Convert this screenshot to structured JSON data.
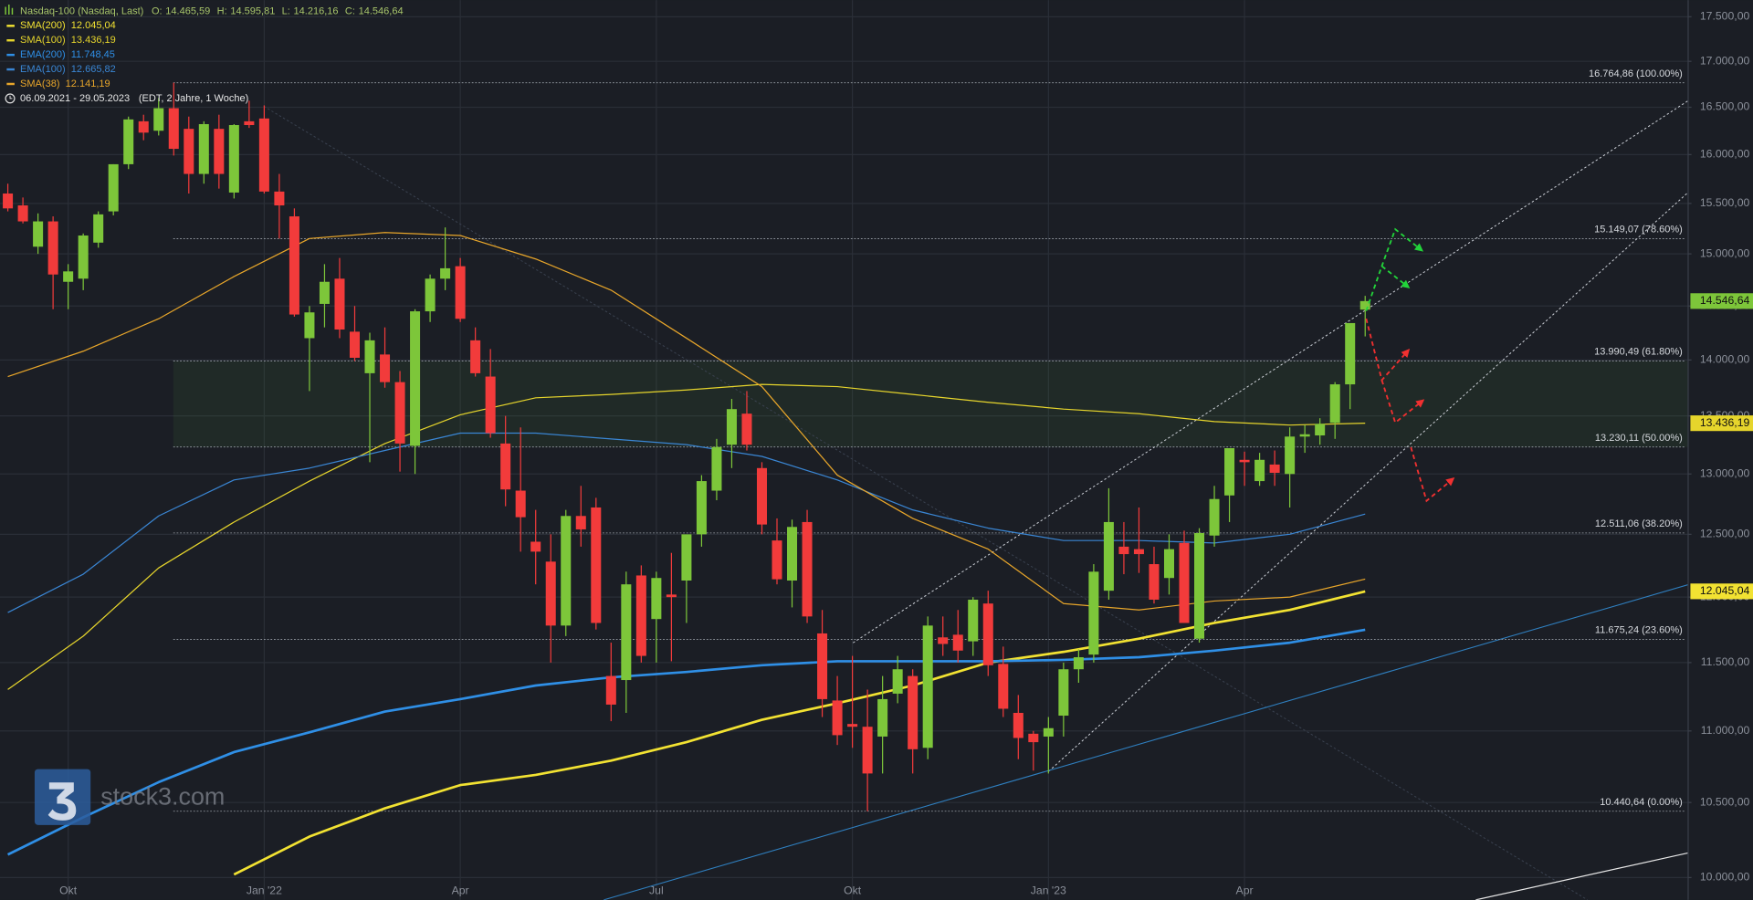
{
  "header": {
    "instrument": "Nasdaq-100 (Nasdaq, Last)",
    "ohlc": [
      {
        "key": "O:",
        "label": "14.465,59"
      },
      {
        "key": "H:",
        "label": "14.595,81"
      },
      {
        "key": "L:",
        "label": "14.216,16"
      },
      {
        "key": "C:",
        "label": "14.546,64"
      }
    ],
    "range": "06.09.2021 - 29.05.2023",
    "range_note": "(EDT, 2 Jahre, 1 Woche)"
  },
  "watermark": "stock3.com",
  "chart_data": {
    "type": "candlestick",
    "log_scale": true,
    "grid": true,
    "ylim": [
      9856,
      17690
    ],
    "yticks": [
      {
        "value": 10000,
        "label": "10.000,00"
      },
      {
        "value": 10500,
        "label": "10.500,00"
      },
      {
        "value": 11000,
        "label": "11.000,00"
      },
      {
        "value": 11500,
        "label": "11.500,00"
      },
      {
        "value": 12000,
        "label": "12.000,00"
      },
      {
        "value": 12500,
        "label": "12.500,00"
      },
      {
        "value": 13000,
        "label": "13.000,00"
      },
      {
        "value": 13500,
        "label": "13.500,00"
      },
      {
        "value": 14000,
        "label": "14.000,00"
      },
      {
        "value": 14500,
        "label": "14.500,00"
      },
      {
        "value": 15000,
        "label": "15.000,00"
      },
      {
        "value": 15500,
        "label": "15.500,00"
      },
      {
        "value": 16000,
        "label": "16.000,00"
      },
      {
        "value": 16500,
        "label": "16.500,00"
      },
      {
        "value": 17000,
        "label": "17.000,00"
      },
      {
        "value": 17500,
        "label": "17.500,00"
      }
    ],
    "xticks": [
      {
        "value": 4,
        "label": "Okt"
      },
      {
        "value": 17,
        "label": "Jan '22"
      },
      {
        "value": 30,
        "label": "Apr"
      },
      {
        "value": 43,
        "label": "Jul"
      },
      {
        "value": 56,
        "label": "Okt"
      },
      {
        "value": 69,
        "label": "Jan '23"
      },
      {
        "value": 82,
        "label": "Apr"
      }
    ],
    "up_color": "#7dc63a",
    "down_color": "#f23b3b",
    "open": [
      15600,
      15480,
      15070,
      15320,
      14730,
      14760,
      15110,
      15420,
      15900,
      16350,
      16250,
      16490,
      16270,
      15800,
      16270,
      15610,
      16350,
      16380,
      15620,
      15370,
      14200,
      14520,
      14760,
      14260,
      13880,
      14050,
      13800,
      13240,
      14450,
      14760,
      14880,
      14180,
      13850,
      13260,
      12860,
      12440,
      12280,
      11780,
      12650,
      12720,
      11400,
      11370,
      12170,
      11830,
      12020,
      12130,
      12500,
      12860,
      13250,
      13520,
      13050,
      12450,
      12130,
      12600,
      11720,
      11220,
      11050,
      11030,
      10960,
      11270,
      11400,
      10880,
      11690,
      11710,
      11660,
      11950,
      11490,
      11130,
      10980,
      10960,
      11110,
      11450,
      11560,
      12050,
      12400,
      12380,
      12260,
      12150,
      12430,
      11680,
      12490,
      12820,
      13120,
      12940,
      13080,
      13000,
      13320,
      13330,
      13440,
      13780,
      14465.59
    ],
    "high": [
      15700,
      15560,
      15400,
      15370,
      14900,
      15200,
      15420,
      15900,
      16400,
      16420,
      16600,
      16764.86,
      16400,
      16350,
      16420,
      16320,
      16570,
      16520,
      15800,
      15450,
      14500,
      14900,
      14960,
      14500,
      14250,
      14300,
      13900,
      14470,
      14800,
      15260,
      14960,
      14300,
      14100,
      13500,
      13400,
      12700,
      12500,
      12700,
      12900,
      12800,
      11650,
      12200,
      12250,
      12200,
      12350,
      12450,
      12990,
      13300,
      13650,
      13720,
      13100,
      12630,
      12620,
      12700,
      11900,
      11400,
      11550,
      11300,
      11400,
      11550,
      11450,
      11850,
      11850,
      11900,
      12000,
      12050,
      11620,
      11260,
      11000,
      11100,
      11500,
      11600,
      12260,
      12880,
      12600,
      12720,
      12400,
      12500,
      12530,
      12550,
      12900,
      13220,
      13190,
      13180,
      13200,
      13400,
      13420,
      13480,
      13800,
      14300,
      14595.81
    ],
    "low": [
      15420,
      15300,
      15000,
      14470,
      14470,
      14650,
      15060,
      15380,
      15850,
      16150,
      16200,
      15990,
      15600,
      15700,
      15650,
      15550,
      16280,
      15600,
      15150,
      14400,
      13720,
      14300,
      14200,
      13990,
      13100,
      13750,
      13020,
      13000,
      14350,
      14650,
      14350,
      13850,
      13310,
      12730,
      12360,
      12100,
      11500,
      11700,
      12400,
      11750,
      11070,
      11130,
      11500,
      11500,
      11510,
      11800,
      12400,
      12780,
      13050,
      13200,
      12500,
      12100,
      11920,
      11800,
      11100,
      10900,
      10880,
      10440.64,
      10700,
      11200,
      10700,
      10800,
      11550,
      11500,
      11550,
      11400,
      11100,
      10800,
      10720,
      10700,
      10960,
      11350,
      11500,
      11980,
      12180,
      12190,
      11950,
      12020,
      11800,
      11650,
      12400,
      12600,
      12900,
      12900,
      12900,
      12720,
      13180,
      13250,
      13300,
      13560,
      14216.16
    ],
    "close": [
      15450,
      15320,
      15320,
      14800,
      14830,
      15180,
      15390,
      15900,
      16370,
      16230,
      16490,
      16060,
      15800,
      16320,
      15800,
      16310,
      16310,
      15620,
      15480,
      14420,
      14440,
      14730,
      14280,
      14020,
      14180,
      13800,
      13260,
      14450,
      14760,
      14860,
      14380,
      13880,
      13350,
      12870,
      12640,
      12360,
      11780,
      12650,
      12540,
      11800,
      11190,
      12100,
      11550,
      12150,
      12000,
      12500,
      12940,
      13230,
      13560,
      13250,
      12580,
      12140,
      12560,
      11850,
      11230,
      10970,
      11030,
      10700,
      11230,
      11450,
      10870,
      11780,
      11640,
      11590,
      11980,
      11480,
      11160,
      10950,
      10920,
      11020,
      11450,
      11540,
      12200,
      12600,
      12340,
      12340,
      11980,
      12380,
      11800,
      12510,
      12790,
      13220,
      13100,
      13120,
      13010,
      13320,
      13340,
      13430,
      13780,
      14340,
      14546.64
    ],
    "last_label": "14.546,64",
    "lines": [
      {
        "name": "SMA(200)",
        "color": "#f2e232",
        "tag": true,
        "x": [
          15,
          20,
          25,
          30,
          35,
          40,
          45,
          50,
          55,
          60,
          65,
          70,
          75,
          80,
          85,
          90
        ],
        "values": [
          10020,
          10270,
          10460,
          10620,
          10690,
          10790,
          10920,
          11080,
          11200,
          11330,
          11500,
          11580,
          11680,
          11800,
          11900,
          12045.04
        ],
        "last_label": "12.045,04"
      },
      {
        "name": "SMA(100)",
        "color": "#e6d52c",
        "tag": true,
        "x": [
          0,
          5,
          10,
          15,
          20,
          25,
          30,
          35,
          40,
          45,
          50,
          55,
          60,
          65,
          70,
          75,
          80,
          85,
          90
        ],
        "values": [
          11300,
          11700,
          12230,
          12600,
          12940,
          13260,
          13510,
          13660,
          13690,
          13730,
          13780,
          13760,
          13690,
          13620,
          13560,
          13520,
          13450,
          13420,
          13436.19
        ],
        "last_label": "13.436,19"
      },
      {
        "name": "EMA(200)",
        "color": "#2f8fe6",
        "tag": false,
        "x": [
          0,
          5,
          10,
          15,
          20,
          25,
          30,
          35,
          40,
          45,
          50,
          55,
          60,
          65,
          70,
          75,
          80,
          85,
          90
        ],
        "values": [
          10150,
          10400,
          10640,
          10850,
          10990,
          11140,
          11230,
          11330,
          11390,
          11430,
          11480,
          11510,
          11510,
          11510,
          11520,
          11540,
          11590,
          11650,
          11748.45
        ],
        "last_label": "11.748,45"
      },
      {
        "name": "EMA(100)",
        "color": "#3a86d4",
        "tag": false,
        "x": [
          0,
          5,
          10,
          15,
          20,
          25,
          30,
          35,
          40,
          45,
          50,
          55,
          60,
          65,
          70,
          75,
          80,
          85,
          90
        ],
        "values": [
          11880,
          12180,
          12650,
          12950,
          13050,
          13200,
          13350,
          13350,
          13300,
          13250,
          13150,
          12950,
          12700,
          12550,
          12450,
          12450,
          12430,
          12500,
          12665.82
        ],
        "last_label": "12.665,82"
      },
      {
        "name": "SMA(38)",
        "color": "#e8a62a",
        "tag": false,
        "x": [
          0,
          5,
          10,
          15,
          20,
          25,
          30,
          35,
          40,
          45,
          50,
          55,
          60,
          65,
          70,
          75,
          80,
          85,
          90
        ],
        "values": [
          13850,
          14080,
          14380,
          14780,
          15150,
          15210,
          15180,
          14950,
          14650,
          14200,
          13760,
          12990,
          12630,
          12380,
          11950,
          11900,
          11970,
          12000,
          12141.19
        ],
        "last_label": "12.141,19"
      }
    ],
    "levels": [
      {
        "value": 16764.86,
        "label": "16.764,86 (100.00%)"
      },
      {
        "value": 15149.07,
        "label": "15.149,07 (78.60%)"
      },
      {
        "value": 13990.49,
        "label": "13.990,49 (61.80%)"
      },
      {
        "value": 13230.11,
        "label": "13.230,11 (50.00%)"
      },
      {
        "value": 12511.06,
        "label": "12.511,06 (38.20%)"
      },
      {
        "value": 11675.24,
        "label": "11.675,24 (23.60%)"
      },
      {
        "value": 10440.64,
        "label": "10.440,64 (0.00%)"
      }
    ]
  }
}
